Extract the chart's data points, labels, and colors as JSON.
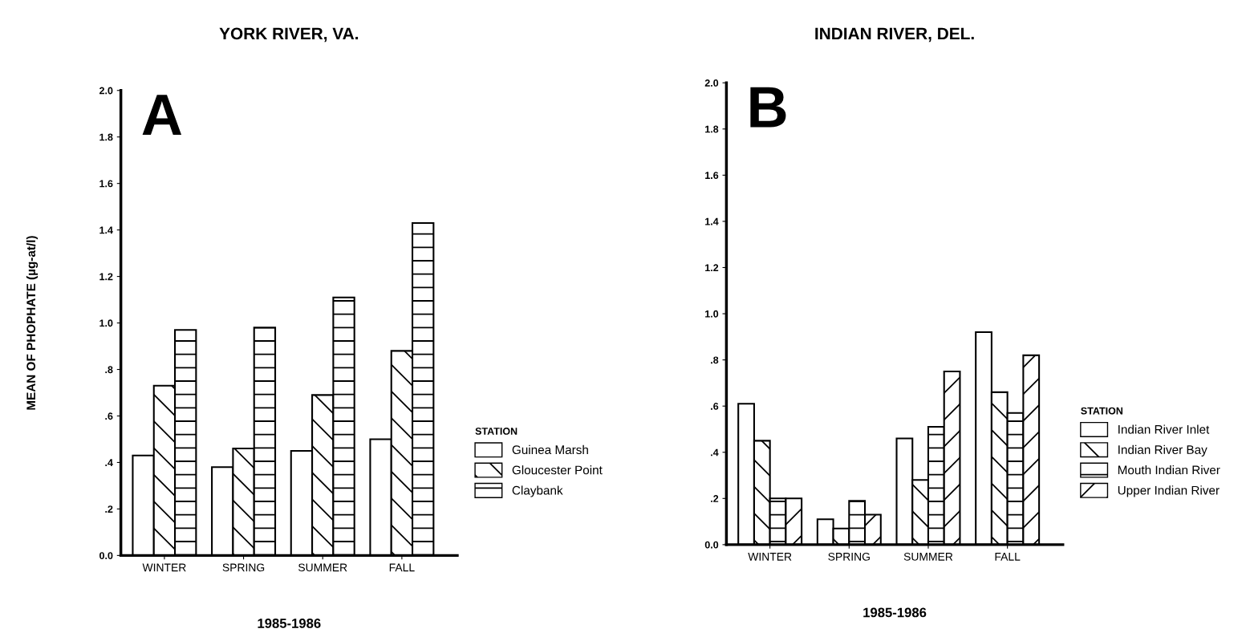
{
  "chart_data": [
    {
      "type": "bar",
      "title": "YORK RIVER, VA.",
      "xlabel": "1985-1986",
      "ylabel": "MEAN OF PHOPHATE (µg-at/l)",
      "legend_title": "STATION",
      "legend": "right",
      "annotations": [
        "A"
      ],
      "categories": [
        "WINTER",
        "SPRING",
        "SUMMER",
        "FALL"
      ],
      "series": [
        {
          "name": "Guinea Marsh",
          "color": "#ffffff",
          "values": [
            0.43,
            0.38,
            0.45,
            0.5
          ]
        },
        {
          "name": "Gloucester Point",
          "color": "#000000",
          "values": [
            0.73,
            0.46,
            0.69,
            0.88
          ]
        },
        {
          "name": "Claybank",
          "color": "#000000",
          "values": [
            0.97,
            0.98,
            1.11,
            1.43
          ]
        }
      ],
      "ylim": [
        0,
        2.0
      ],
      "yticks": [
        {
          "value": 0,
          "label": "0.0"
        },
        {
          "value": 0.2,
          "label": ".2"
        },
        {
          "value": 0.4,
          "label": ".4"
        },
        {
          "value": 0.6,
          "label": ".6"
        },
        {
          "value": 0.8,
          "label": ".8"
        },
        {
          "value": 1.0,
          "label": "1.0"
        },
        {
          "value": 1.2,
          "label": "1.2"
        },
        {
          "value": 1.4,
          "label": "1.4"
        },
        {
          "value": 1.6,
          "label": "1.6"
        },
        {
          "value": 1.8,
          "label": "1.8"
        },
        {
          "value": 2.0,
          "label": "2.0"
        }
      ],
      "grid": false
    },
    {
      "type": "bar",
      "title": "INDIAN RIVER, DEL.",
      "xlabel": "1985-1986",
      "legend_title": "STATION",
      "legend": "right",
      "annotations": [
        "B"
      ],
      "categories": [
        "WINTER",
        "SPRING",
        "SUMMER",
        "FALL"
      ],
      "series": [
        {
          "name": "Indian River Inlet",
          "color": "#ffffff",
          "values": [
            0.61,
            0.11,
            0.46,
            0.92
          ]
        },
        {
          "name": "Indian River Bay",
          "color": "#000000",
          "values": [
            0.45,
            0.07,
            0.28,
            0.66
          ]
        },
        {
          "name": "Mouth Indian River",
          "color": "#000000",
          "values": [
            0.2,
            0.19,
            0.51,
            0.57
          ]
        },
        {
          "name": "Upper Indian River",
          "color": "#000000",
          "values": [
            0.2,
            0.13,
            0.75,
            0.82
          ]
        }
      ],
      "ylim": [
        0,
        2.0
      ],
      "yticks": [
        {
          "value": 0,
          "label": "0.0"
        },
        {
          "value": 0.2,
          "label": ".2"
        },
        {
          "value": 0.4,
          "label": ".4"
        },
        {
          "value": 0.6,
          "label": ".6"
        },
        {
          "value": 0.8,
          "label": ".8"
        },
        {
          "value": 1.0,
          "label": "1.0"
        },
        {
          "value": 1.2,
          "label": "1.2"
        },
        {
          "value": 1.4,
          "label": "1.4"
        },
        {
          "value": 1.6,
          "label": "1.6"
        },
        {
          "value": 1.8,
          "label": "1.8"
        },
        {
          "value": 2.0,
          "label": "2.0"
        }
      ],
      "grid": false
    }
  ]
}
